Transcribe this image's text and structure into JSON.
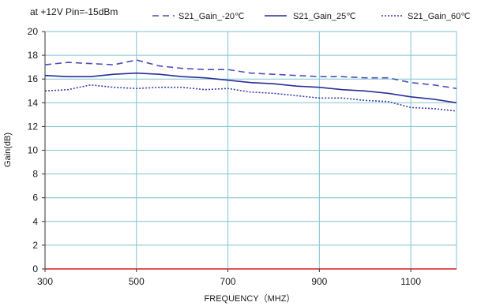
{
  "chart_data": {
    "type": "line",
    "annotation": "at +12V Pin=-15dBm",
    "xlabel": "FREQUENCY（MHZ）",
    "ylabel": "Gain(dB)",
    "xlim": [
      300,
      1200
    ],
    "ylim": [
      0,
      20
    ],
    "xticks": [
      300,
      500,
      700,
      900,
      1100
    ],
    "yticks": [
      0,
      2,
      4,
      6,
      8,
      10,
      12,
      14,
      16,
      18,
      20
    ],
    "grid": true,
    "legend_position": "top",
    "series": [
      {
        "name": "S21_Gain_-20℃",
        "style": "dashed",
        "color": "#4a4fb8",
        "x": [
          300,
          350,
          400,
          450,
          500,
          550,
          600,
          650,
          700,
          750,
          800,
          850,
          900,
          950,
          1000,
          1050,
          1100,
          1150,
          1200
        ],
        "y": [
          17.2,
          17.4,
          17.3,
          17.2,
          17.6,
          17.1,
          16.9,
          16.8,
          16.8,
          16.5,
          16.4,
          16.3,
          16.2,
          16.2,
          16.1,
          16.1,
          15.7,
          15.5,
          15.2
        ]
      },
      {
        "name": "S21_Gain_25℃",
        "style": "solid",
        "color": "#2a2f96",
        "x": [
          300,
          350,
          400,
          450,
          500,
          550,
          600,
          650,
          700,
          750,
          800,
          850,
          900,
          950,
          1000,
          1050,
          1100,
          1150,
          1200
        ],
        "y": [
          16.3,
          16.2,
          16.2,
          16.4,
          16.5,
          16.4,
          16.2,
          16.1,
          15.9,
          15.7,
          15.6,
          15.4,
          15.3,
          15.1,
          15.0,
          14.8,
          14.5,
          14.3,
          14.0
        ]
      },
      {
        "name": "S21_Gain_60℃",
        "style": "dotted",
        "color": "#3a3fa8",
        "x": [
          300,
          350,
          400,
          450,
          500,
          550,
          600,
          650,
          700,
          750,
          800,
          850,
          900,
          950,
          1000,
          1050,
          1100,
          1150,
          1200
        ],
        "y": [
          15.0,
          15.1,
          15.5,
          15.3,
          15.2,
          15.3,
          15.3,
          15.1,
          15.2,
          14.9,
          14.8,
          14.6,
          14.4,
          14.4,
          14.2,
          14.1,
          13.6,
          13.5,
          13.3
        ]
      }
    ]
  }
}
